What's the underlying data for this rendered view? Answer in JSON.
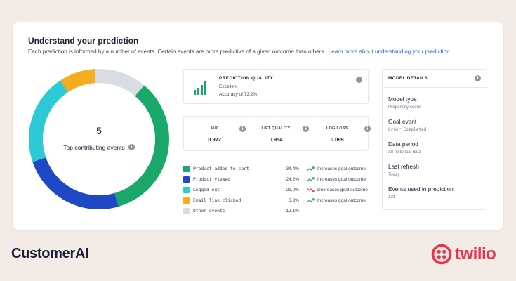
{
  "header": {
    "title": "Understand your prediction",
    "subtitle": "Each prediction is informed by a number of events. Certain events are more predictive of a given outcome than others.",
    "learn_more_link": "Learn more about understanding your prediction"
  },
  "donut": {
    "center_value": "5",
    "center_label": "Top contributing events"
  },
  "chart_data": {
    "type": "pie",
    "categories": [
      "Product added to cart",
      "Product viewed",
      "Logged out",
      "Email link clicked",
      "Other events"
    ],
    "values": [
      34.4,
      24.2,
      21.0,
      8.3,
      12.1
    ],
    "colors": [
      "#1aa86a",
      "#1f49c4",
      "#2ccad4",
      "#f5ac1e",
      "#d9dde3"
    ]
  },
  "quality": {
    "title": "PREDICTION QUALITY",
    "rating": "Excellent",
    "accuracy": "Accuracy of 73.2%",
    "icon": "bar-chart-icon"
  },
  "metrics": [
    {
      "label": "AUC",
      "value": "0.972"
    },
    {
      "label": "LIFT QUALITY",
      "value": "0.954"
    },
    {
      "label": "LOG LOSS",
      "value": "0.099"
    }
  ],
  "events": [
    {
      "name": "Product added to cart",
      "pct": "34.4%",
      "outcome": "Increases goal outcome",
      "trend": "up",
      "color": "#1aa86a"
    },
    {
      "name": "Product viewed",
      "pct": "24.2%",
      "outcome": "Increases goal outcome",
      "trend": "up",
      "color": "#1f49c4"
    },
    {
      "name": "Logged out",
      "pct": "21.0%",
      "outcome": "Decreases goal outcome",
      "trend": "down",
      "color": "#2ccad4"
    },
    {
      "name": "Email link clicked",
      "pct": "8.3%",
      "outcome": "Increases goal outcome",
      "trend": "up",
      "color": "#f5ac1e"
    },
    {
      "name": "Other events",
      "pct": "12.1%",
      "outcome": "",
      "trend": "",
      "color": "#d9dde3"
    }
  ],
  "model_details": {
    "title": "MODEL DETAILS",
    "items": [
      {
        "label": "Model type",
        "value": "Propensity score"
      },
      {
        "label": "Goal event",
        "value": "Order Completed"
      },
      {
        "label": "Data period",
        "value": "All historical data"
      },
      {
        "label": "Last refresh",
        "value": "Today"
      },
      {
        "label": "Events used in prediction",
        "value": "121"
      }
    ]
  },
  "footer": {
    "brand": "CustomerAI",
    "partner": "twilio"
  },
  "colors": {
    "up": "#1aa86a",
    "down": "#e5424d",
    "link": "#2b62d9",
    "twilio": "#f22f46"
  }
}
